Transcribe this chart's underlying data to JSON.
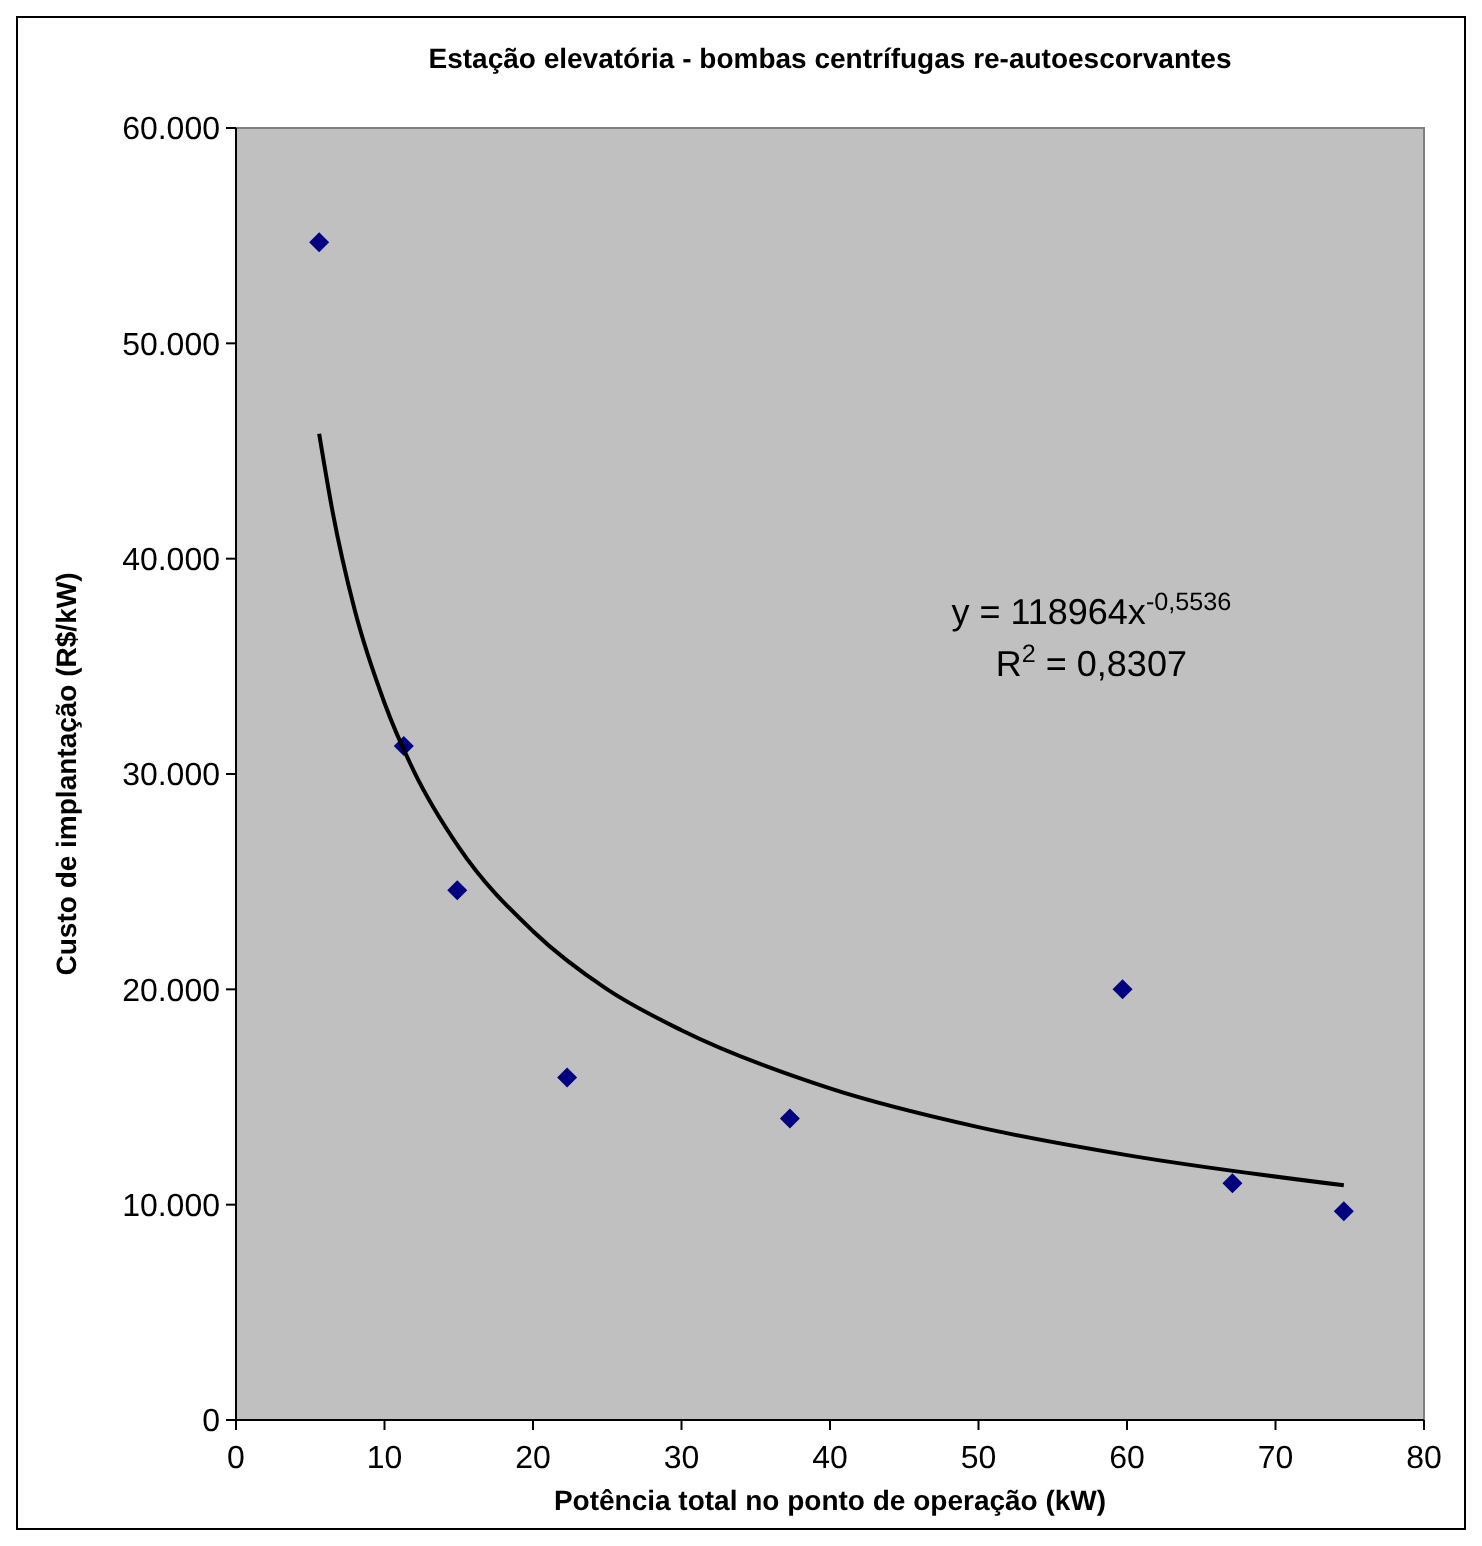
{
  "chart_data": {
    "type": "scatter",
    "title": "Estação elevatória - bombas centrífugas re-autoescorvantes",
    "xlabel": "Potência total no ponto de operação (kW)",
    "ylabel": "Custo de implantação (R$/kW)",
    "series": [
      {
        "color": "#000080",
        "marker": "diamond",
        "x": [
          5.6,
          11.3,
          14.9,
          22.3,
          37.3,
          59.7,
          67.1,
          74.6
        ],
        "values": [
          54700,
          31300,
          24600,
          15900,
          14000,
          20000,
          11000,
          9700
        ]
      },
      {
        "type": "line",
        "color": "#000000",
        "marker": "none",
        "line_style": "solid",
        "x": [
          5.6,
          6.5,
          8,
          10,
          12,
          15,
          20,
          25,
          30,
          40,
          50,
          60,
          74.6
        ],
        "values": [
          45800,
          42200,
          37600,
          33300,
          30100,
          26600,
          22700,
          20000,
          18100,
          15400,
          13600,
          12300,
          10900
        ]
      }
    ],
    "xlim": [
      0,
      80
    ],
    "xticks": [
      0,
      10,
      20,
      30,
      40,
      50,
      60,
      70,
      80
    ],
    "ylim": [
      0,
      60000
    ],
    "yticks": [
      0,
      {
        "value": 10000,
        "label": "10.000"
      },
      {
        "value": 20000,
        "label": "20.000"
      },
      {
        "value": 30000,
        "label": "30.000"
      },
      {
        "value": 40000,
        "label": "40.000"
      },
      {
        "value": 50000,
        "label": "50.000"
      },
      {
        "value": 60000,
        "label": "60.000"
      }
    ],
    "grid": false,
    "annotations": [
      "y = 118964x$^{-0,5536}$",
      "R$^{2}$ = 0,8307"
    ]
  }
}
